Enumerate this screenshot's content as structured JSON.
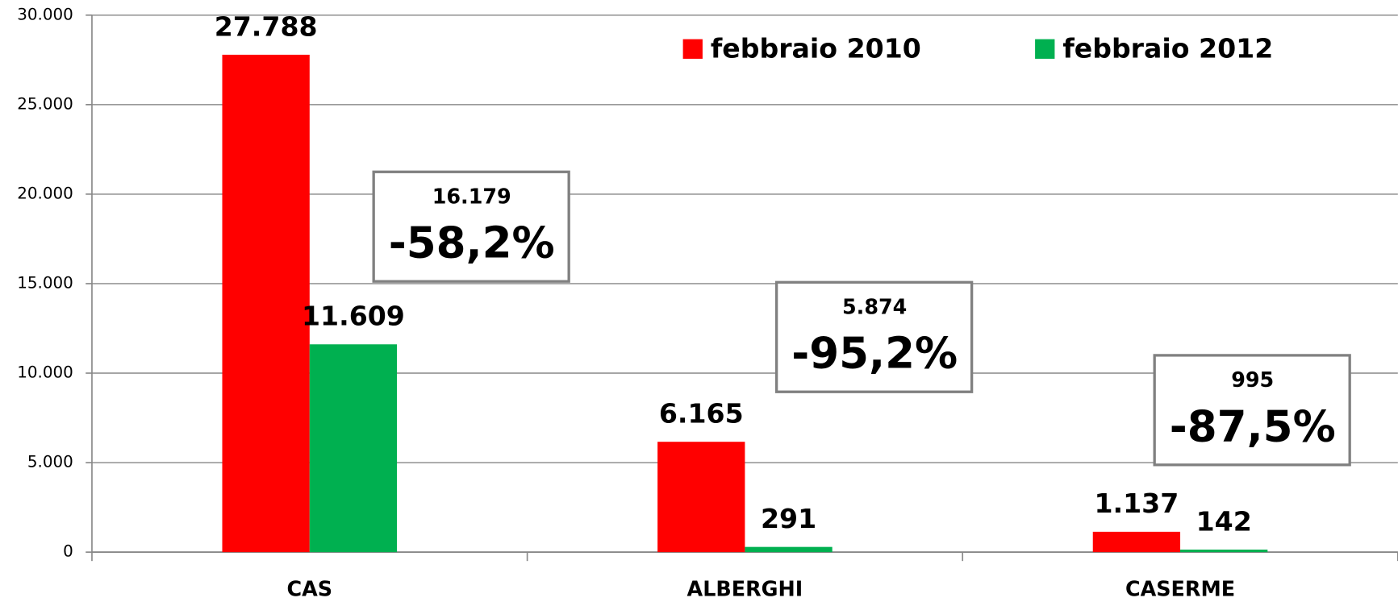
{
  "chart_data": {
    "type": "bar",
    "categories": [
      "CAS",
      "ALBERGHI",
      "CASERME"
    ],
    "series": [
      {
        "name": "febbraio 2010",
        "color": "#ff0000",
        "values": [
          27788,
          6165,
          1137
        ],
        "value_labels": [
          "27.788",
          "6.165",
          "1.137"
        ]
      },
      {
        "name": "febbraio 2012",
        "color": "#00b050",
        "values": [
          11609,
          291,
          142
        ],
        "value_labels": [
          "11.609",
          "291",
          "142"
        ]
      }
    ],
    "ylim": [
      0,
      30000
    ],
    "yticks": [
      0,
      {
        "value": 5000,
        "label": "5.000"
      },
      {
        "value": 10000,
        "label": "10.000"
      },
      {
        "value": 15000,
        "label": "15.000"
      },
      {
        "value": 20000,
        "label": "20.000"
      },
      {
        "value": 25000,
        "label": "25.000"
      },
      {
        "value": 30000,
        "label": "30.000"
      }
    ],
    "grid": true,
    "legend": "top",
    "annotations": [
      {
        "difference": "16.179",
        "change": "-58,2%"
      },
      {
        "difference": "5.874",
        "change": "-95,2%"
      },
      {
        "difference": "995",
        "change": "-87,5%"
      }
    ]
  }
}
